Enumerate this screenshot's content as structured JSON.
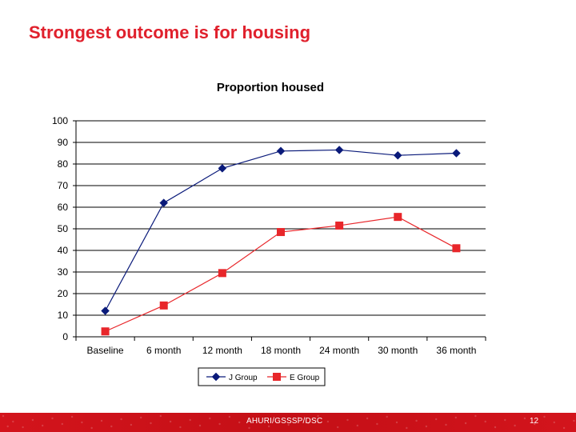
{
  "slide": {
    "title": "Strongest outcome is for housing",
    "footer_text": "AHURI/GSSSP/DSC",
    "page_number": "12"
  },
  "colors": {
    "title": "#e0202c",
    "footer_bar": "#d3141c",
    "j_group": "#0a1a7a",
    "e_group": "#e8262a",
    "gridline": "#000000"
  },
  "chart_data": {
    "type": "line",
    "title": "Proportion housed",
    "xlabel": "",
    "ylabel": "",
    "categories": [
      "Baseline",
      "6 month",
      "12 month",
      "18 month",
      "24 month",
      "30 month",
      "36 month"
    ],
    "ylim": [
      0,
      100
    ],
    "yticks": [
      0,
      10,
      20,
      30,
      40,
      50,
      60,
      70,
      80,
      90,
      100
    ],
    "grid": true,
    "legend_position": "bottom",
    "series": [
      {
        "name": "J Group",
        "marker": "diamond",
        "color": "#0a1a7a",
        "values": [
          12,
          62,
          78,
          86,
          86.5,
          84,
          85
        ]
      },
      {
        "name": "E Group",
        "marker": "square",
        "color": "#e8262a",
        "values": [
          2.5,
          14.5,
          29.5,
          48.5,
          51.5,
          55.5,
          41
        ]
      }
    ]
  }
}
